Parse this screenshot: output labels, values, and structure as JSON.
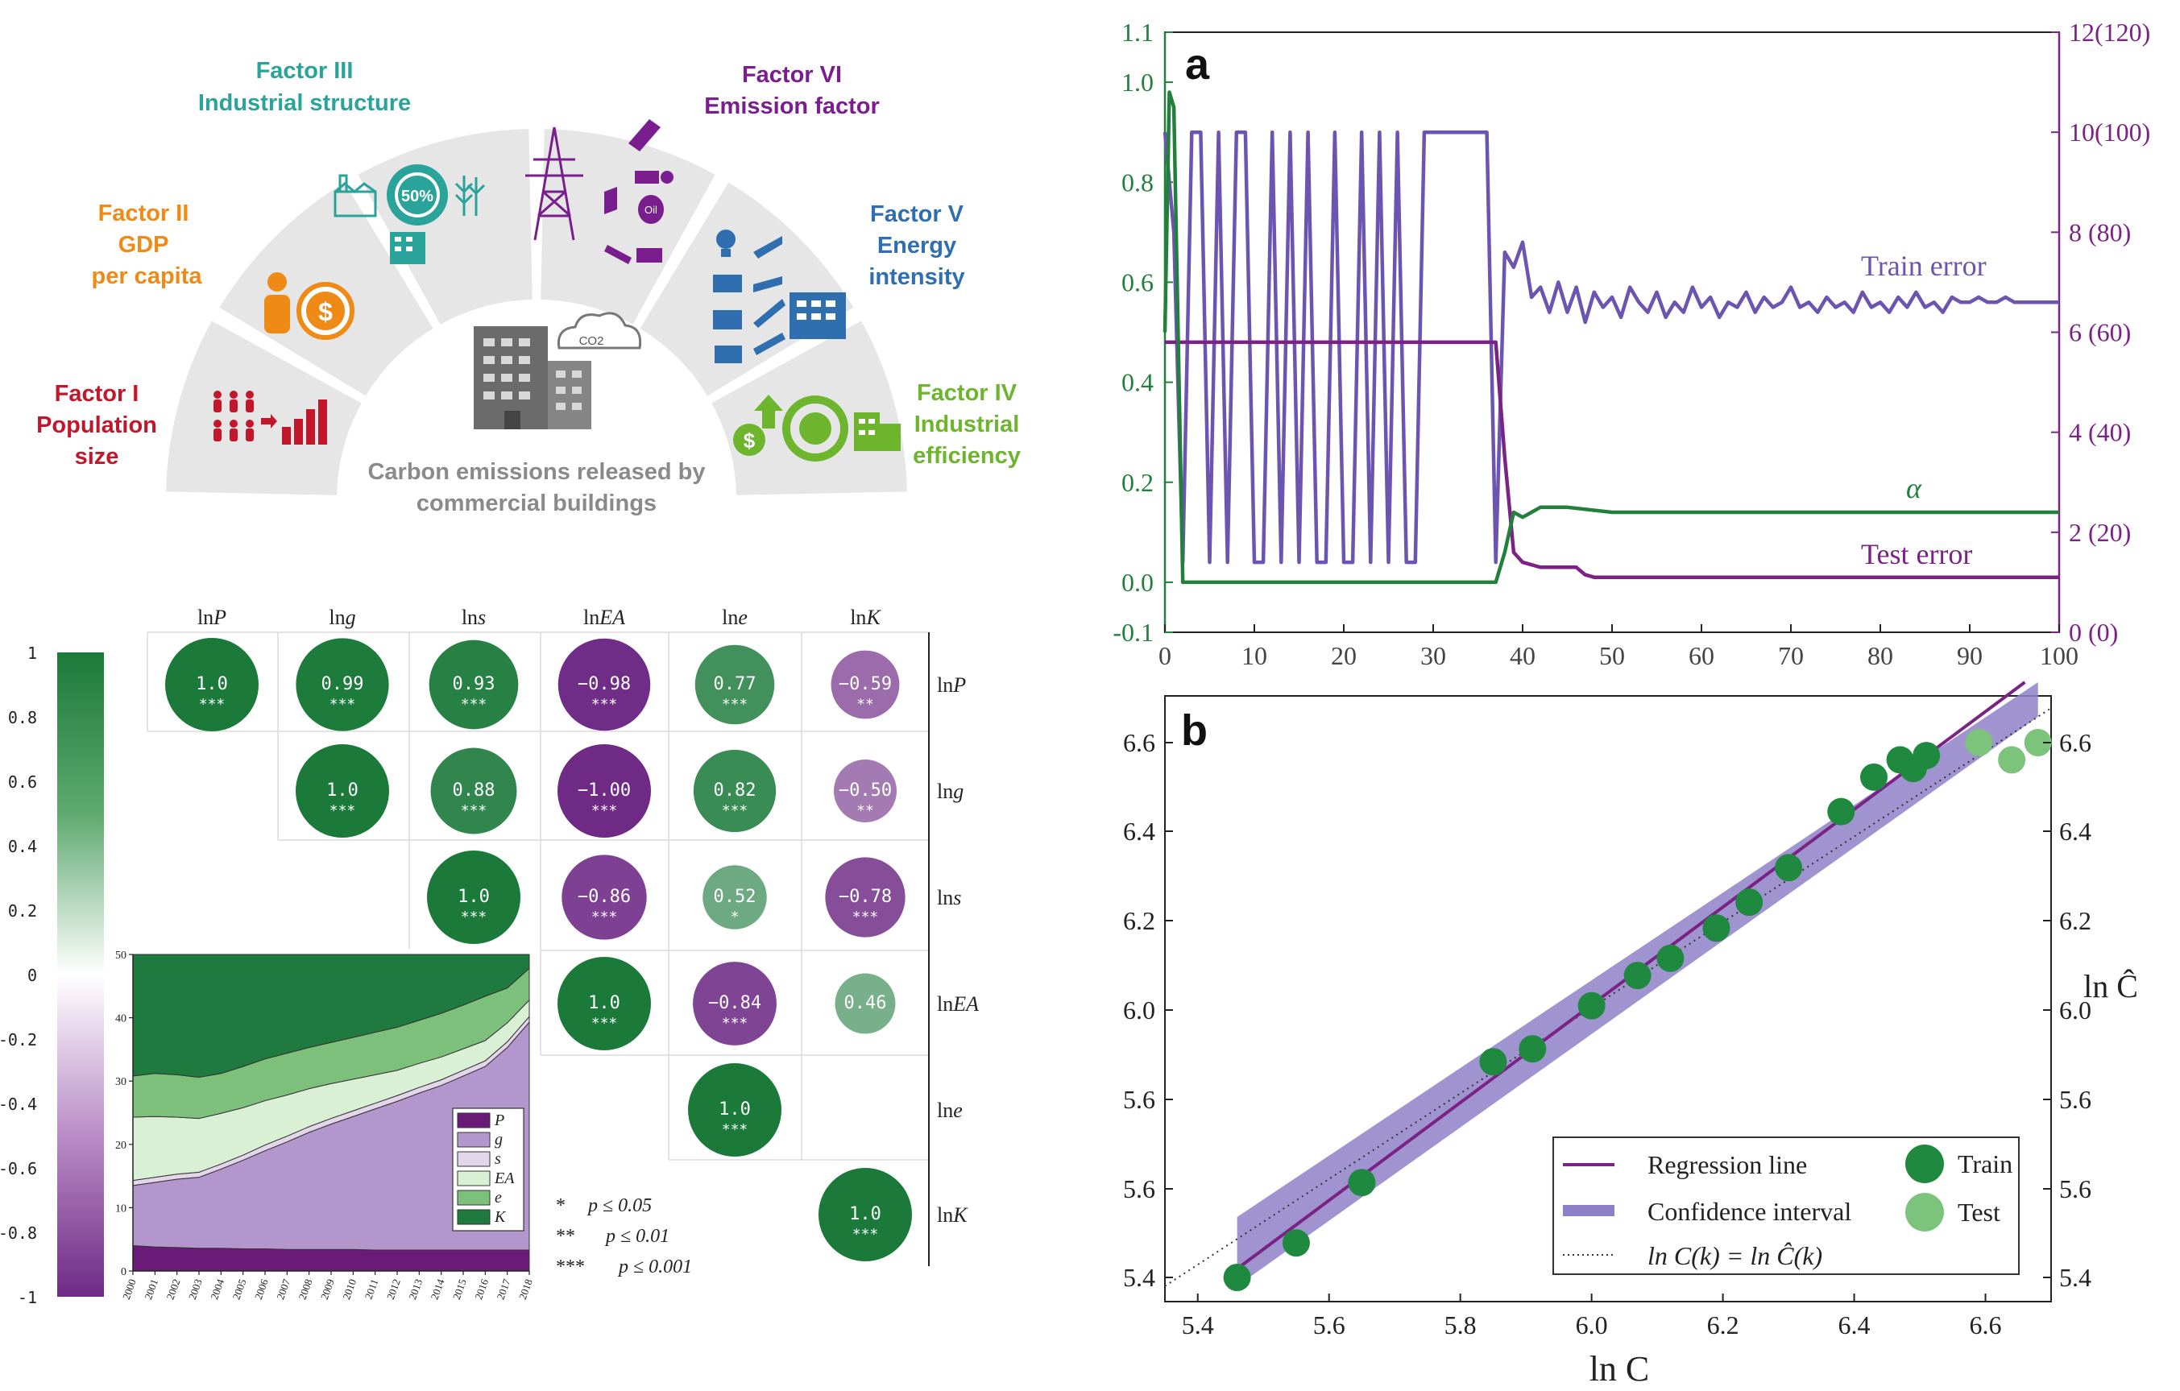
{
  "colors": {
    "factor1": "#c2172a",
    "factor2": "#f08a16",
    "factor3": "#2aa39b",
    "factor4": "#6cb52d",
    "factor5": "#2f6fb0",
    "factor6": "#7a1d8f",
    "arc_fill": "#e6e6e6",
    "green_dark": "#1b7a3a",
    "purple_dark": "#6e2a85",
    "train_line": "#6c55b0",
    "test_line": "#7a2385",
    "alpha_line": "#23803c"
  },
  "factors_diagram": {
    "factors": [
      {
        "id": "I",
        "lines": [
          "Factor I",
          "Population",
          "size"
        ],
        "icon": "population-icon"
      },
      {
        "id": "II",
        "lines": [
          "Factor II",
          "GDP",
          "per capita"
        ],
        "icon": "gdp-icon"
      },
      {
        "id": "III",
        "lines": [
          "Factor III",
          "Industrial structure"
        ],
        "icon": "industry-icon",
        "badge": "50%"
      },
      {
        "id": "VI",
        "lines": [
          "Factor VI",
          "Emission factor"
        ],
        "icon": "power-tower-icon",
        "badge": "Oil"
      },
      {
        "id": "V",
        "lines": [
          "Factor V",
          "Energy",
          "intensity"
        ],
        "icon": "energy-devices-icon"
      },
      {
        "id": "IV",
        "lines": [
          "Factor IV",
          "Industrial",
          "efficiency"
        ],
        "icon": "recycle-icon"
      }
    ],
    "center_caption": [
      "Carbon emissions released by",
      "commercial buildings"
    ],
    "co2_label": "CO2"
  },
  "correlation_matrix": {
    "variables": [
      "lnP",
      "lng",
      "lns",
      "lnEA",
      "lne",
      "lnK"
    ],
    "col_labels": [
      [
        "ln",
        "P"
      ],
      [
        "ln",
        "g"
      ],
      [
        "ln",
        "s"
      ],
      [
        "ln",
        "EA"
      ],
      [
        "ln",
        "e"
      ],
      [
        "ln",
        "K"
      ]
    ],
    "row_labels": [
      [
        "ln",
        "P"
      ],
      [
        "ln",
        "g"
      ],
      [
        "ln",
        "s"
      ],
      [
        "ln",
        "EA"
      ],
      [
        "ln",
        "e"
      ],
      [
        "ln",
        "K"
      ]
    ],
    "cells": [
      {
        "r": 0,
        "c": 0,
        "label": "1.0",
        "v": 1.0,
        "sig": "***"
      },
      {
        "r": 0,
        "c": 1,
        "label": "0.99",
        "v": 0.99,
        "sig": "***"
      },
      {
        "r": 0,
        "c": 2,
        "label": "0.93",
        "v": 0.93,
        "sig": "***"
      },
      {
        "r": 0,
        "c": 3,
        "label": "-0.98",
        "v": -0.98,
        "sig": "***"
      },
      {
        "r": 0,
        "c": 4,
        "label": "0.77",
        "v": 0.77,
        "sig": "***"
      },
      {
        "r": 0,
        "c": 5,
        "label": "-0.59",
        "v": -0.59,
        "sig": "**"
      },
      {
        "r": 1,
        "c": 1,
        "label": "1.0",
        "v": 1.0,
        "sig": "***"
      },
      {
        "r": 1,
        "c": 2,
        "label": "0.88",
        "v": 0.88,
        "sig": "***"
      },
      {
        "r": 1,
        "c": 3,
        "label": "-1.00",
        "v": -1.0,
        "sig": "***"
      },
      {
        "r": 1,
        "c": 4,
        "label": "0.82",
        "v": 0.82,
        "sig": "***"
      },
      {
        "r": 1,
        "c": 5,
        "label": "-0.50",
        "v": -0.5,
        "sig": "**"
      },
      {
        "r": 2,
        "c": 2,
        "label": "1.0",
        "v": 1.0,
        "sig": "***"
      },
      {
        "r": 2,
        "c": 3,
        "label": "-0.86",
        "v": -0.86,
        "sig": "***"
      },
      {
        "r": 2,
        "c": 4,
        "label": "0.52",
        "v": 0.52,
        "sig": "*"
      },
      {
        "r": 2,
        "c": 5,
        "label": "-0.78",
        "v": -0.78,
        "sig": "***"
      },
      {
        "r": 3,
        "c": 3,
        "label": "1.0",
        "v": 1.0,
        "sig": "***"
      },
      {
        "r": 3,
        "c": 4,
        "label": "-0.84",
        "v": -0.84,
        "sig": "***"
      },
      {
        "r": 3,
        "c": 5,
        "label": "0.46",
        "v": 0.46,
        "sig": ""
      },
      {
        "r": 4,
        "c": 4,
        "label": "1.0",
        "v": 1.0,
        "sig": "***"
      },
      {
        "r": 5,
        "c": 5,
        "label": "1.0",
        "v": 1.0,
        "sig": "***"
      }
    ],
    "colorbar_ticks": [
      "1",
      "0.8",
      "0.6",
      "0.4",
      "0.2",
      "0",
      "-0.2",
      "-0.4",
      "-0.6",
      "-0.8",
      "-1"
    ],
    "sig_legend": [
      {
        "stars": "*",
        "text": "p ≤ 0.05"
      },
      {
        "stars": "**",
        "text": "p ≤ 0.01"
      },
      {
        "stars": "***",
        "text": "p ≤ 0.001"
      }
    ]
  },
  "chart_data": [
    {
      "type": "area",
      "stacked": true,
      "x": [
        "2000",
        "2001",
        "2002",
        "2003",
        "2004",
        "2005",
        "2006",
        "2007",
        "2008",
        "2009",
        "2010",
        "2011",
        "2012",
        "2013",
        "2014",
        "2015",
        "2016",
        "2017",
        "2018"
      ],
      "ylim": [
        0,
        50
      ],
      "yticks": [
        "0",
        "10",
        "20",
        "30",
        "40",
        "50"
      ],
      "series": [
        {
          "name": "P",
          "color": "#6a1b78",
          "values": [
            4,
            3.8,
            3.7,
            3.6,
            3.6,
            3.5,
            3.5,
            3.4,
            3.4,
            3.4,
            3.4,
            3.3,
            3.3,
            3.3,
            3.3,
            3.3,
            3.3,
            3.3,
            3.3
          ]
        },
        {
          "name": "g",
          "color": "#b397cc",
          "values": [
            9.5,
            10.2,
            10.8,
            11.2,
            12.5,
            14,
            15.5,
            17,
            18.5,
            19.8,
            21,
            22.3,
            23.5,
            24.8,
            26,
            27.5,
            29,
            32,
            36
          ]
        },
        {
          "name": "s",
          "color": "#e3d5ea",
          "values": [
            0.8,
            0.8,
            0.8,
            0.8,
            0.8,
            0.8,
            0.9,
            0.9,
            0.9,
            0.9,
            0.9,
            0.9,
            0.9,
            0.9,
            0.9,
            0.9,
            0.9,
            0.9,
            0.9
          ]
        },
        {
          "name": "EA",
          "color": "#daf0d4",
          "values": [
            10,
            9.6,
            9,
            8.5,
            8,
            7.5,
            7,
            6.5,
            6,
            5.5,
            5,
            4.5,
            4,
            3.8,
            3.6,
            3.4,
            3.2,
            3,
            2.6
          ]
        },
        {
          "name": "e",
          "color": "#7cc07c",
          "values": [
            6.5,
            6.8,
            6.7,
            6.5,
            6.3,
            6.5,
            6.6,
            6.6,
            6.5,
            6.5,
            6.6,
            6.7,
            6.8,
            6.8,
            6.9,
            6.9,
            7,
            5.5,
            5
          ]
        },
        {
          "name": "K",
          "color": "#1e7a3e",
          "values": [
            19.2,
            18.8,
            19,
            19.4,
            18.8,
            17.7,
            16.5,
            15.6,
            14.7,
            13.9,
            13.1,
            12.3,
            11.5,
            10.4,
            9.3,
            8,
            6.6,
            5.3,
            2.2
          ]
        }
      ],
      "legend": [
        "P",
        "g",
        "s",
        "EA",
        "e",
        "K"
      ]
    },
    {
      "type": "line",
      "panel_label": "a",
      "xlim": [
        0,
        100
      ],
      "xticks": [
        "0",
        "10",
        "20",
        "30",
        "40",
        "50",
        "60",
        "70",
        "80",
        "90",
        "100"
      ],
      "y_left_lim": [
        -0.1,
        1.1
      ],
      "y_left_ticks": [
        "-0.1",
        "0.0",
        "0.2",
        "0.4",
        "0.6",
        "0.8",
        "1.0",
        "1.1"
      ],
      "y_right_lim": [
        0,
        12
      ],
      "y_right_ticks": [
        "0 (0)",
        "2 (20)",
        "4 (40)",
        "6 (60)",
        "8 (80)",
        "10(100)",
        "12(120)"
      ],
      "series": [
        {
          "name": "Train error",
          "axis": "right",
          "color": "#6c55b0",
          "x": [
            0,
            1,
            2,
            3,
            4,
            5,
            6,
            7,
            8,
            9,
            10,
            11,
            12,
            13,
            14,
            15,
            16,
            17,
            18,
            19,
            20,
            21,
            22,
            23,
            24,
            25,
            26,
            27,
            28,
            29,
            30,
            31,
            32,
            33,
            34,
            35,
            36,
            37,
            38,
            39,
            40,
            41,
            42,
            43,
            44,
            45,
            46,
            47,
            48,
            49,
            50,
            51,
            52,
            53,
            54,
            55,
            56,
            57,
            58,
            59,
            60,
            61,
            62,
            63,
            64,
            65,
            66,
            67,
            68,
            69,
            70,
            71,
            72,
            73,
            74,
            75,
            76,
            77,
            78,
            79,
            80,
            81,
            82,
            83,
            84,
            85,
            86,
            87,
            88,
            89,
            90,
            91,
            92,
            93,
            94,
            95,
            96,
            97,
            98,
            99,
            100
          ],
          "values": [
            10,
            8,
            1.4,
            10,
            10,
            1.4,
            10,
            1.4,
            10,
            10,
            1.4,
            1.4,
            10,
            1.4,
            10,
            1.4,
            10,
            1.4,
            1.4,
            10,
            1.4,
            1.4,
            10,
            1.4,
            10,
            1.4,
            10,
            1.4,
            1.4,
            10,
            10,
            10,
            10,
            10,
            10,
            10,
            10,
            1.4,
            7.6,
            7.3,
            7.8,
            6.7,
            6.9,
            6.4,
            7.0,
            6.4,
            6.9,
            6.2,
            6.8,
            6.5,
            6.7,
            6.3,
            6.9,
            6.6,
            6.4,
            6.8,
            6.3,
            6.6,
            6.4,
            6.9,
            6.5,
            6.7,
            6.3,
            6.6,
            6.5,
            6.8,
            6.4,
            6.7,
            6.5,
            6.6,
            6.9,
            6.5,
            6.6,
            6.4,
            6.7,
            6.5,
            6.6,
            6.4,
            6.8,
            6.5,
            6.6,
            6.4,
            6.7,
            6.5,
            6.8,
            6.5,
            6.6,
            6.4,
            6.7,
            6.6,
            6.6,
            6.7,
            6.6,
            6.6,
            6.7,
            6.6,
            6.6,
            6.6,
            6.6,
            6.6,
            6.6
          ]
        },
        {
          "name": "Test error",
          "axis": "right",
          "color": "#7a2385",
          "x": [
            0,
            37,
            38,
            39,
            40,
            41,
            42,
            43,
            44,
            45,
            46,
            47,
            48,
            49,
            50,
            60,
            70,
            80,
            90,
            100
          ],
          "values": [
            5.8,
            5.8,
            3.5,
            1.6,
            1.4,
            1.35,
            1.3,
            1.3,
            1.3,
            1.3,
            1.3,
            1.15,
            1.1,
            1.1,
            1.1,
            1.1,
            1.1,
            1.1,
            1.1,
            1.1
          ]
        },
        {
          "name": "α",
          "axis": "left",
          "color": "#23803c",
          "x": [
            0,
            0.5,
            1,
            2,
            3,
            36,
            37,
            38,
            39,
            40,
            42,
            45,
            50,
            60,
            70,
            80,
            90,
            100
          ],
          "values": [
            0.5,
            0.98,
            0.95,
            0,
            0,
            0,
            0,
            0.06,
            0.14,
            0.13,
            0.15,
            0.15,
            0.14,
            0.14,
            0.14,
            0.14,
            0.14,
            0.14
          ]
        }
      ],
      "annotations": [
        "Train error",
        "α",
        "Test error"
      ]
    },
    {
      "type": "scatter",
      "panel_label": "b",
      "xlabel": "ln C",
      "ylabel": "ln Ĉ",
      "xlim": [
        5.35,
        6.7
      ],
      "xticks": [
        "5.4",
        "5.6",
        "5.8",
        "6.0",
        "6.2",
        "6.4",
        "6.6"
      ],
      "y_ticks_left": [
        "5.4",
        "5.6",
        "5.6",
        "6.0",
        "6.2",
        "6.4",
        "6.6"
      ],
      "y_ticks_right": [
        "5.4",
        "5.6",
        "5.6",
        "6.0",
        "6.2",
        "6.4",
        "6.6"
      ],
      "train": [
        [
          5.46,
          5.36
        ],
        [
          5.55,
          5.44
        ],
        [
          5.65,
          5.58
        ],
        [
          5.85,
          5.86
        ],
        [
          5.91,
          5.89
        ],
        [
          6.0,
          5.99
        ],
        [
          6.07,
          6.06
        ],
        [
          6.12,
          6.1
        ],
        [
          6.19,
          6.17
        ],
        [
          6.24,
          6.23
        ],
        [
          6.3,
          6.31
        ],
        [
          6.38,
          6.44
        ],
        [
          6.43,
          6.52
        ],
        [
          6.47,
          6.56
        ],
        [
          6.49,
          6.54
        ],
        [
          6.51,
          6.57
        ]
      ],
      "test": [
        [
          6.59,
          6.6
        ],
        [
          6.64,
          6.56
        ],
        [
          6.68,
          6.6
        ]
      ],
      "legend": [
        "Regression line",
        "Confidence interval",
        "ln C(k) = ln Ĉ(k)",
        "Train",
        "Test"
      ]
    }
  ]
}
